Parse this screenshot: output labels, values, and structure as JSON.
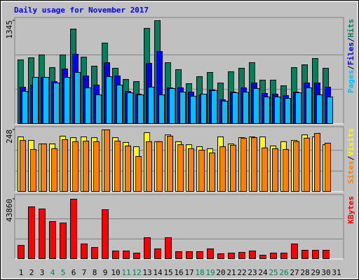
{
  "chart_data": [
    {
      "type": "bar",
      "title": "Daily usage for November 2017",
      "ylim": [
        0,
        1345
      ],
      "yticks": [
        1345
      ],
      "legend_separator": "/",
      "series": [
        {
          "name": "Hits",
          "color": "#00805c",
          "values": [
            836,
            863,
            900,
            736,
            900,
            1236,
            872,
            754,
            1054,
            727,
            582,
            554,
            1245,
            1345,
            800,
            709,
            527,
            618,
            672,
            536,
            682,
            727,
            800,
            573,
            573,
            500,
            736,
            772,
            854,
            727,
            null
          ]
        },
        {
          "name": "Files",
          "color": "#0000ff",
          "values": [
            482,
            509,
            609,
            554,
            718,
            909,
            627,
            509,
            800,
            627,
            427,
            391,
            791,
            945,
            473,
            473,
            418,
            382,
            445,
            318,
            418,
            473,
            536,
            400,
            391,
            373,
            418,
            536,
            536,
            482,
            null
          ]
        },
        {
          "name": "Pages",
          "color": "#00c0ff",
          "values": [
            427,
            609,
            609,
            536,
            609,
            673,
            473,
            382,
            618,
            509,
            409,
            382,
            482,
            382,
            464,
            418,
            364,
            391,
            436,
            300,
            409,
            418,
            464,
            355,
            355,
            336,
            409,
            473,
            382,
            355,
            null
          ]
        }
      ]
    },
    {
      "type": "bar",
      "ylim": [
        0,
        248
      ],
      "yticks": [
        248
      ],
      "legend_separator": "/",
      "series": [
        {
          "name": "Visits",
          "color": "#ffff00",
          "values": [
            220,
            206,
            192,
            192,
            223,
            217,
            220,
            217,
            248,
            217,
            198,
            181,
            237,
            201,
            228,
            201,
            189,
            181,
            173,
            220,
            192,
            217,
            220,
            220,
            184,
            201,
            206,
            228,
            220,
            189,
            null
          ]
        },
        {
          "name": "Sites",
          "color": "#ff8000",
          "values": [
            206,
            170,
            192,
            173,
            209,
            201,
            203,
            201,
            248,
            203,
            184,
            142,
            201,
            201,
            223,
            189,
            173,
            167,
            156,
            181,
            187,
            215,
            217,
            176,
            173,
            170,
            201,
            215,
            234,
            195,
            null
          ]
        }
      ]
    },
    {
      "type": "bar",
      "ylim": [
        0,
        43860
      ],
      "yticks": [
        43860
      ],
      "categories": [
        "1",
        "2",
        "3",
        "4",
        "5",
        "6",
        "7",
        "8",
        "9",
        "10",
        "11",
        "12",
        "13",
        "14",
        "15",
        "16",
        "17",
        "18",
        "19",
        "20",
        "21",
        "22",
        "23",
        "24",
        "25",
        "26",
        "27",
        "28",
        "29",
        "30",
        "31"
      ],
      "label_colors": [
        "#000000",
        "#000000",
        "#000000",
        "#00805c",
        "#00805c",
        "#000000",
        "#000000",
        "#000000",
        "#000000",
        "#000000",
        "#00805c",
        "#00805c",
        "#000000",
        "#000000",
        "#000000",
        "#000000",
        "#000000",
        "#00805c",
        "#00805c",
        "#000000",
        "#000000",
        "#000000",
        "#000000",
        "#000000",
        "#00805c",
        "#00805c",
        "#000000",
        "#000000",
        "#000000",
        "#000000",
        "#000000"
      ],
      "series": [
        {
          "name": "KBytes",
          "color": "#ff0000",
          "values": [
            10200,
            38250,
            36720,
            27540,
            26520,
            43860,
            11220,
            8670,
            36210,
            6120,
            6120,
            4590,
            15810,
            7650,
            15810,
            5610,
            5610,
            5610,
            7650,
            4080,
            4590,
            5100,
            6120,
            3060,
            4590,
            4590,
            11220,
            6630,
            6630,
            6630,
            null
          ]
        }
      ]
    }
  ]
}
